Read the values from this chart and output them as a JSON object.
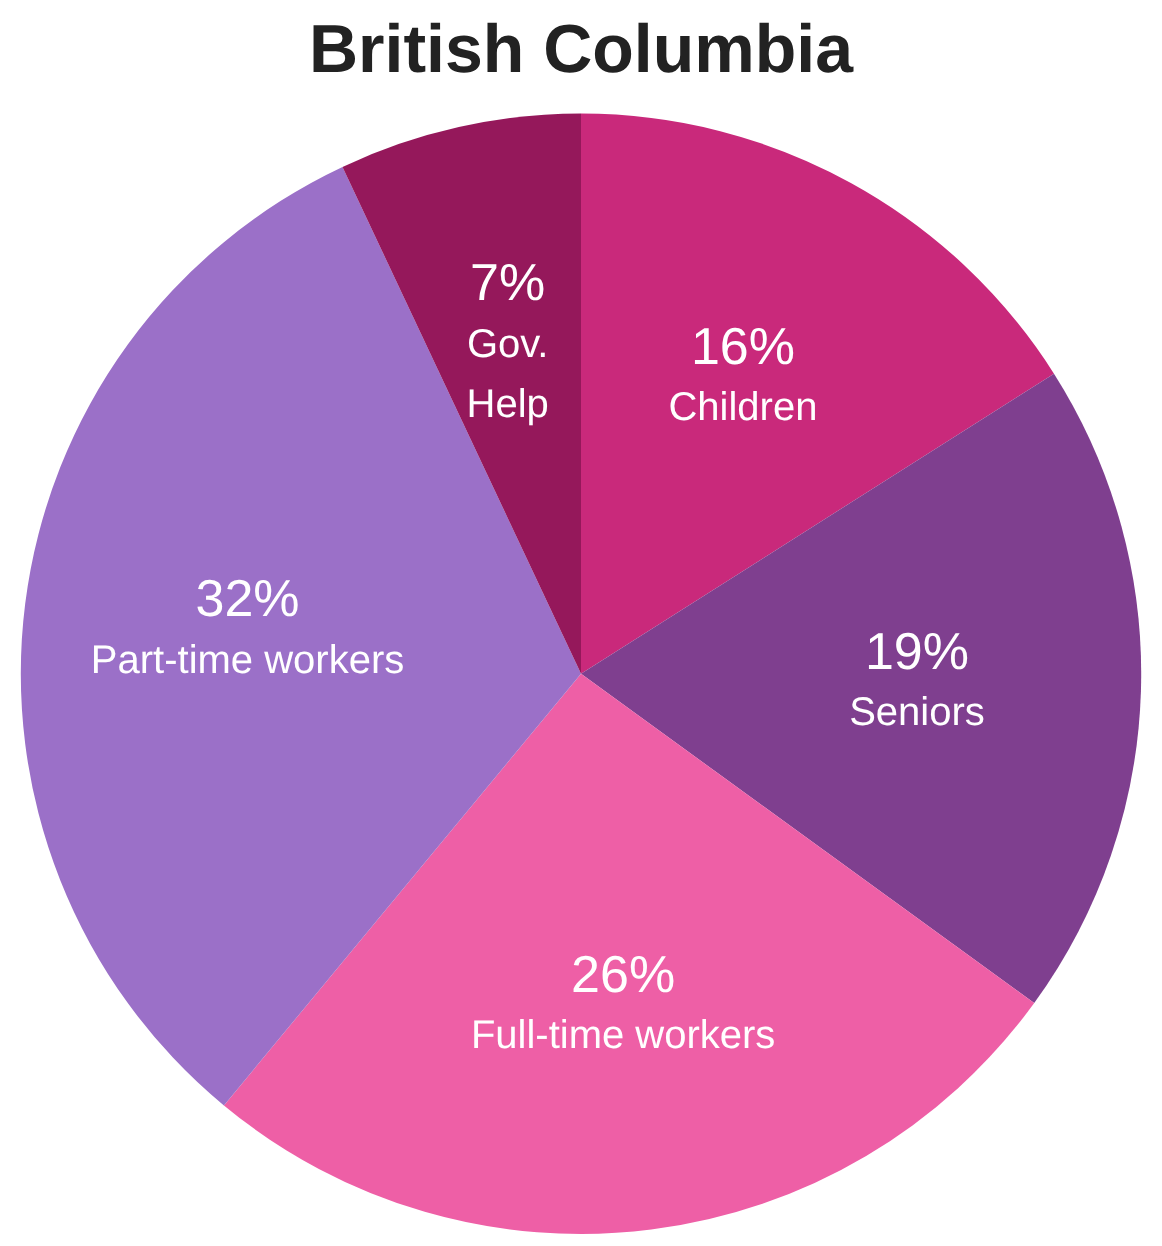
{
  "chart_data": {
    "type": "pie",
    "title": "British Columbia",
    "categories": [
      "Children",
      "Seniors",
      "Full-time workers",
      "Part-time workers",
      "Gov. Help"
    ],
    "values": [
      16,
      19,
      26,
      32,
      7
    ],
    "colors": [
      "#c9297b",
      "#7f3f8f",
      "#ee5fa6",
      "#9b70c8",
      "#95185b"
    ],
    "value_labels": [
      "16%",
      "19%",
      "26%",
      "32%",
      "7%"
    ],
    "legend": false
  }
}
